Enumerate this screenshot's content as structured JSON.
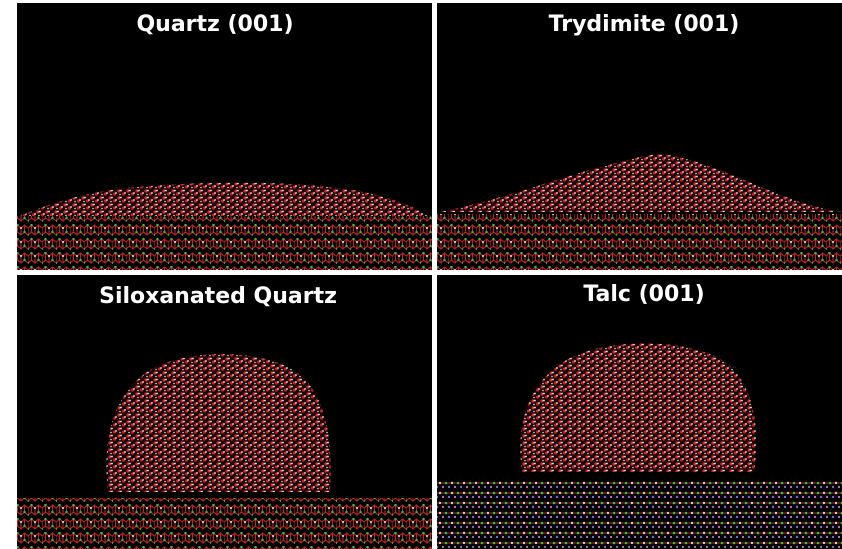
{
  "panels": [
    {
      "title": "Quartz (001)"
    },
    {
      "title": "Trydimite (001)"
    },
    {
      "title": "Siloxanated Quartz"
    },
    {
      "title": "Talc (001)"
    }
  ]
}
